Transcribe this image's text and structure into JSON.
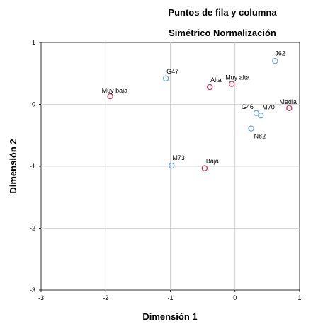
{
  "chart_data": {
    "type": "scatter",
    "title": "Puntos de fila y columna",
    "subtitle": "Simétrico Normalización",
    "xlabel": "Dimensión 1",
    "ylabel": "Dimensión 2",
    "xlim": [
      -3,
      1
    ],
    "ylim": [
      -3,
      1
    ],
    "x_ticks": [
      "-3",
      "-2",
      "-1",
      "0",
      "1"
    ],
    "y_ticks": [
      "1",
      "0",
      "-1",
      "-2",
      "-3"
    ],
    "grid": true,
    "colors": {
      "columns": "#6fa8dc",
      "rows": "#d03a5e"
    },
    "series": [
      {
        "color_key": "columns",
        "points": [
          {
            "label": "J62",
            "x": 0.62,
            "y": 0.7
          },
          {
            "label": "G47",
            "x": -1.07,
            "y": 0.42
          },
          {
            "label": "G46",
            "x": 0.33,
            "y": -0.14
          },
          {
            "label": "M70",
            "x": 0.4,
            "y": -0.18
          },
          {
            "label": "N82",
            "x": 0.25,
            "y": -0.39
          },
          {
            "label": "M73",
            "x": -0.98,
            "y": -0.99
          }
        ]
      },
      {
        "color_key": "rows",
        "points": [
          {
            "label": "Muy baja",
            "x": -1.93,
            "y": 0.13
          },
          {
            "label": "Alta",
            "x": -0.39,
            "y": 0.28
          },
          {
            "label": "Muy alta",
            "x": -0.05,
            "y": 0.33
          },
          {
            "label": "Media",
            "x": 0.84,
            "y": -0.06
          },
          {
            "label": "Baja",
            "x": -0.47,
            "y": -1.03
          }
        ]
      }
    ]
  }
}
